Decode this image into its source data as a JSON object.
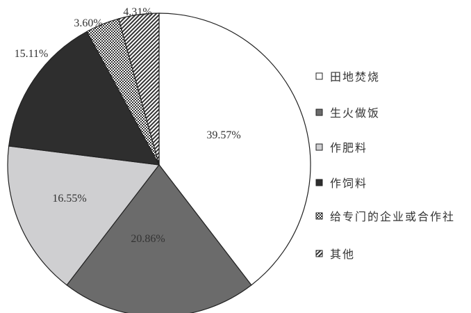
{
  "chart_data": {
    "type": "pie",
    "start": "12 o'clock",
    "direction": "clockwise",
    "legend_position": "right",
    "slices": [
      {
        "name": "田地焚烧",
        "value": 39.57,
        "label": "39.57%",
        "fill": "#ffffff",
        "pattern": "none"
      },
      {
        "name": "生火做饭",
        "value": 20.86,
        "label": "20.86%",
        "fill": "#6b6b6b",
        "pattern": "none"
      },
      {
        "name": "作肥料",
        "value": 16.55,
        "label": "16.55%",
        "fill": "#cfcfd1",
        "pattern": "none"
      },
      {
        "name": "作饲料",
        "value": 15.11,
        "label": "15.11%",
        "fill": "#2e2e2e",
        "pattern": "none"
      },
      {
        "name": "给专门的企业或合作社",
        "value": 3.6,
        "label": "3.60%",
        "fill": "#8a8a8a",
        "pattern": "crosshatch"
      },
      {
        "name": "其他",
        "value": 4.31,
        "label": "4.31%",
        "fill": "#ffffff",
        "pattern": "diagonal"
      }
    ]
  }
}
